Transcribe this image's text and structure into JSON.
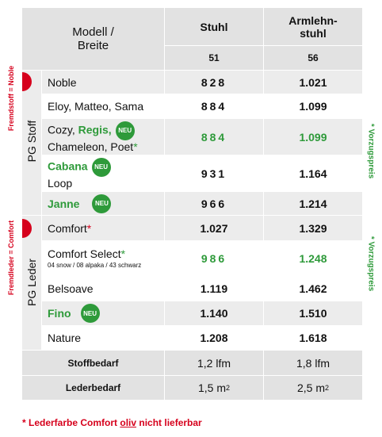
{
  "header": {
    "model": [
      "Modell /",
      "Breite"
    ],
    "col1": {
      "title": "Stuhl",
      "width": "51"
    },
    "col2": {
      "title": [
        "Armlehn-",
        "stuhl"
      ],
      "width": "56"
    }
  },
  "groups": [
    {
      "label": "PG Stoff",
      "side_note": "Fremdstoff = Noble",
      "price_note": "* Vorzugspreis"
    },
    {
      "label": "PG Leder",
      "side_note": "Fremdleder = Comfort",
      "price_note": "* Vorzugspreis"
    }
  ],
  "rows": [
    {
      "name": [
        "Noble"
      ],
      "stuhl": "828",
      "armlehn": "1.021"
    },
    {
      "name": [
        "Eloy, Matteo, Sama"
      ],
      "stuhl": "884",
      "armlehn": "1.099"
    },
    {
      "name": [
        "Cozy, ",
        "Regis,",
        "Chameleon, Poet",
        "*"
      ],
      "badge": "NEU",
      "stuhl": "884",
      "armlehn": "1.099"
    },
    {
      "name": [
        "Cabana",
        "Loop"
      ],
      "badge": "NEU",
      "stuhl": "931",
      "armlehn": "1.164"
    },
    {
      "name": [
        "Janne"
      ],
      "badge": "NEU",
      "stuhl": "966",
      "armlehn": "1.214"
    },
    {
      "name": [
        "Comfort",
        "*"
      ],
      "stuhl": "1.027",
      "armlehn": "1.329"
    },
    {
      "name": [
        "Comfort Select",
        "*"
      ],
      "note": "04 snow / 08 alpaka / 43 schwarz",
      "stuhl": "986",
      "armlehn": "1.248"
    },
    {
      "name": [
        "Belsoave"
      ],
      "stuhl": "1.119",
      "armlehn": "1.462"
    },
    {
      "name": [
        "Fino"
      ],
      "badge": "NEU",
      "stuhl": "1.140",
      "armlehn": "1.510"
    },
    {
      "name": [
        "Nature"
      ],
      "stuhl": "1.208",
      "armlehn": "1.618"
    }
  ],
  "totals": [
    {
      "label": "Stoffbedarf",
      "stuhl": [
        "1,2 lfm"
      ],
      "armlehn": [
        "1,8 lfm"
      ]
    },
    {
      "label": "Lederbedarf",
      "stuhl": [
        "1,5 m",
        "2"
      ],
      "armlehn": [
        "2,5 m",
        "2"
      ]
    }
  ],
  "footnote": [
    "* Lederfarbe Comfort ",
    "oliv",
    " nicht lieferbar"
  ]
}
